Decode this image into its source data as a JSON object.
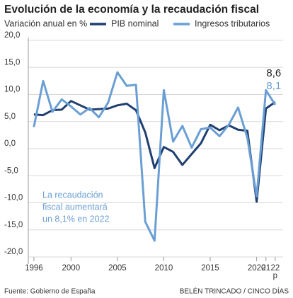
{
  "chart_data": {
    "type": "line",
    "title": "Evolución de la economía y la recaudación fiscal",
    "subtitle": "Variación anual en %",
    "x": [
      1996,
      1997,
      1998,
      1999,
      2000,
      2001,
      2002,
      2003,
      2004,
      2005,
      2006,
      2007,
      2008,
      2009,
      2010,
      2011,
      2012,
      2013,
      2014,
      2015,
      2016,
      2017,
      2018,
      2019,
      2020,
      2021,
      2022
    ],
    "series": [
      {
        "name": "PIB nominal",
        "color": "#1f3f6e",
        "values": [
          6.3,
          6.2,
          7.1,
          7.2,
          8.8,
          8.0,
          7.2,
          7.3,
          7.4,
          8.0,
          8.3,
          7.1,
          3.0,
          -3.6,
          0.3,
          -0.6,
          -3.0,
          -1.0,
          1.0,
          4.4,
          3.4,
          4.3,
          3.5,
          3.3,
          -9.8,
          7.4,
          8.6
        ],
        "value_labels": [
          null,
          null,
          null,
          null,
          null,
          null,
          null,
          null,
          null,
          null,
          null,
          null,
          null,
          null,
          null,
          null,
          null,
          null,
          null,
          null,
          null,
          null,
          null,
          null,
          null,
          null,
          "8,6"
        ]
      },
      {
        "name": "Ingresos tributarios",
        "color": "#6b9fd4",
        "values": [
          4.0,
          12.5,
          6.8,
          9.1,
          7.8,
          6.3,
          7.5,
          5.8,
          8.5,
          14.1,
          11.6,
          11.8,
          -13.5,
          -17.0,
          10.8,
          1.3,
          4.2,
          0.2,
          3.6,
          3.9,
          2.3,
          4.4,
          7.6,
          2.0,
          -8.8,
          10.8,
          8.1
        ],
        "value_labels": [
          null,
          null,
          null,
          null,
          null,
          null,
          null,
          null,
          null,
          null,
          null,
          null,
          null,
          null,
          null,
          null,
          null,
          null,
          null,
          null,
          null,
          null,
          null,
          null,
          null,
          null,
          "8,1"
        ]
      }
    ],
    "xlim": [
      1995.4,
      2022.85
    ],
    "xticks": [
      1996,
      2000,
      2005,
      2010,
      2015,
      2020,
      {
        "value": 2021,
        "label": "21"
      },
      {
        "value": 2022,
        "label": "22 p"
      }
    ],
    "ylim": [
      -20,
      20
    ],
    "yticks": [
      {
        "value": 20,
        "label": "20,0"
      },
      {
        "value": 15,
        "label": "15,0"
      },
      {
        "value": 10,
        "label": "10,0"
      },
      {
        "value": 5,
        "label": "5,0"
      },
      {
        "value": 0,
        "label": "0,0"
      },
      {
        "value": -5,
        "label": "-5,0"
      },
      {
        "value": -10,
        "label": "-10,0"
      },
      {
        "value": -15,
        "label": "-15,0"
      },
      {
        "value": -20,
        "label": "-20,0"
      }
    ],
    "grid": true,
    "annotation": [
      "La recaudación",
      "fiscal aumentará",
      "un 8,1% en 2022"
    ],
    "source": "Fuente: Gobierno de España",
    "credit": "BELÉN TRINCADO / CINCO DÍAS"
  }
}
